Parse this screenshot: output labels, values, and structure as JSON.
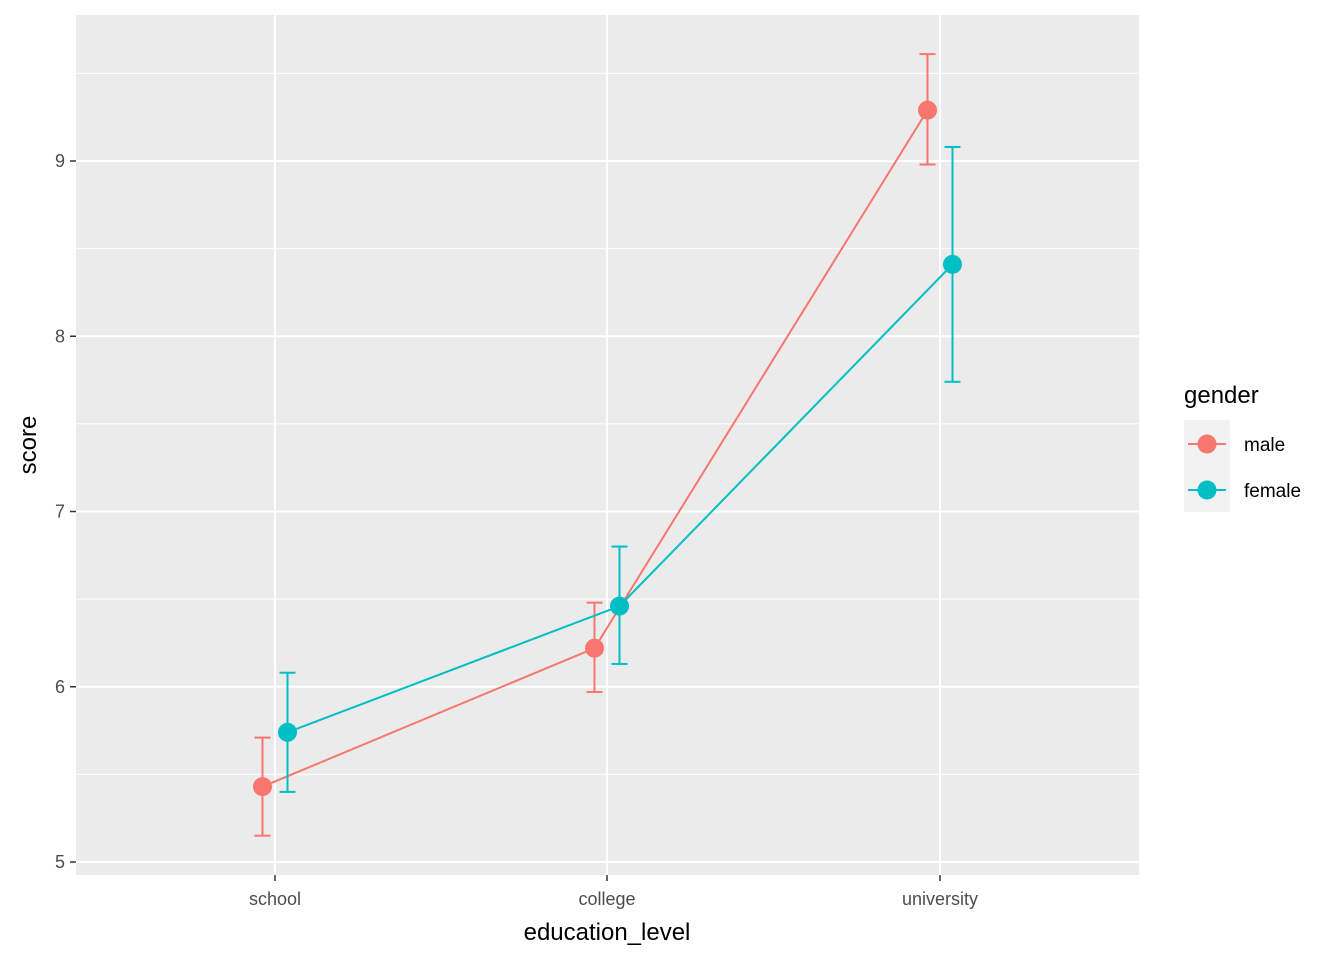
{
  "chart_data": {
    "type": "line",
    "title": "",
    "xlabel": "education_level",
    "ylabel": "score",
    "categories": [
      "school",
      "college",
      "university"
    ],
    "ylim": [
      4.95,
      9.85
    ],
    "yticks": [
      5,
      6,
      7,
      8,
      9
    ],
    "grid": true,
    "legend": {
      "title": "gender",
      "position": "right"
    },
    "series": [
      {
        "name": "male",
        "color": "#F8766D",
        "values": [
          5.43,
          6.22,
          9.29
        ],
        "lower": [
          5.15,
          5.97,
          8.98
        ],
        "upper": [
          5.71,
          6.48,
          9.61
        ]
      },
      {
        "name": "female",
        "color": "#00BFC4",
        "values": [
          5.74,
          6.46,
          8.41
        ],
        "lower": [
          5.4,
          6.13,
          7.74
        ],
        "upper": [
          6.08,
          6.8,
          9.08
        ]
      }
    ]
  }
}
